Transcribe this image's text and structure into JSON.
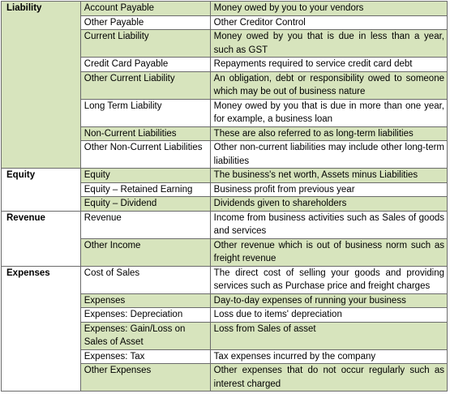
{
  "groups": [
    {
      "category": "Liability",
      "rows": [
        {
          "account": "Account Payable",
          "description": "Money owed by you to your vendors",
          "shaded": true
        },
        {
          "account": "Other Payable",
          "description": "Other Creditor Control",
          "shaded": false
        },
        {
          "account": "Current Liability",
          "description": "Money owed by you that is due in less than a year, such as GST",
          "shaded": true
        },
        {
          "account": "Credit Card Payable",
          "description": "Repayments required to service credit card debt",
          "shaded": false
        },
        {
          "account": "Other Current Liability",
          "description": "An obligation, debt or responsibility owed to someone which may be out of business nature",
          "shaded": true
        },
        {
          "account": "Long Term Liability",
          "description": "Money owed by you that is due in more than one year, for example, a business loan",
          "shaded": false
        },
        {
          "account": "Non-Current Liabilities",
          "description": "These are also referred to as long-term liabilities",
          "shaded": true
        },
        {
          "account": "Other Non-Current Liabilities",
          "description": "Other non-current liabilities may include other long-term liabilities",
          "shaded": false
        }
      ]
    },
    {
      "category": "Equity",
      "rows": [
        {
          "account": "Equity",
          "description": "The business's net worth, Assets minus Liabilities",
          "shaded": true
        },
        {
          "account": "Equity – Retained Earning",
          "description": "Business profit from previous year",
          "shaded": false
        },
        {
          "account": "Equity – Dividend",
          "description": "Dividends given to shareholders",
          "shaded": true
        }
      ]
    },
    {
      "category": "Revenue",
      "rows": [
        {
          "account": "Revenue",
          "description": "Income from business activities such as Sales of goods and services",
          "shaded": false
        },
        {
          "account": "Other Income",
          "description": "Other revenue which is out of business norm such as freight revenue",
          "shaded": true
        }
      ]
    },
    {
      "category": "Expenses",
      "rows": [
        {
          "account": "Cost of Sales",
          "description": "The direct cost of selling your goods and providing services such as Purchase price and freight charges",
          "shaded": false
        },
        {
          "account": "Expenses",
          "description": "Day-to-day expenses of running your business",
          "shaded": true
        },
        {
          "account": "Expenses: Depreciation",
          "description": "Loss due to items' depreciation",
          "shaded": false
        },
        {
          "account": "Expenses: Gain/Loss on Sales of Asset",
          "description": "Loss from Sales of asset",
          "shaded": true
        },
        {
          "account": "Expenses: Tax",
          "description": "Tax expenses incurred by the company",
          "shaded": false
        },
        {
          "account": "Other Expenses",
          "description": "Other expenses that do not occur regularly such as interest charged",
          "shaded": true
        }
      ]
    }
  ],
  "colors": {
    "shade": "#d7e4bd",
    "border": "#6b6b6b",
    "text": "#000000",
    "background": "#ffffff"
  }
}
